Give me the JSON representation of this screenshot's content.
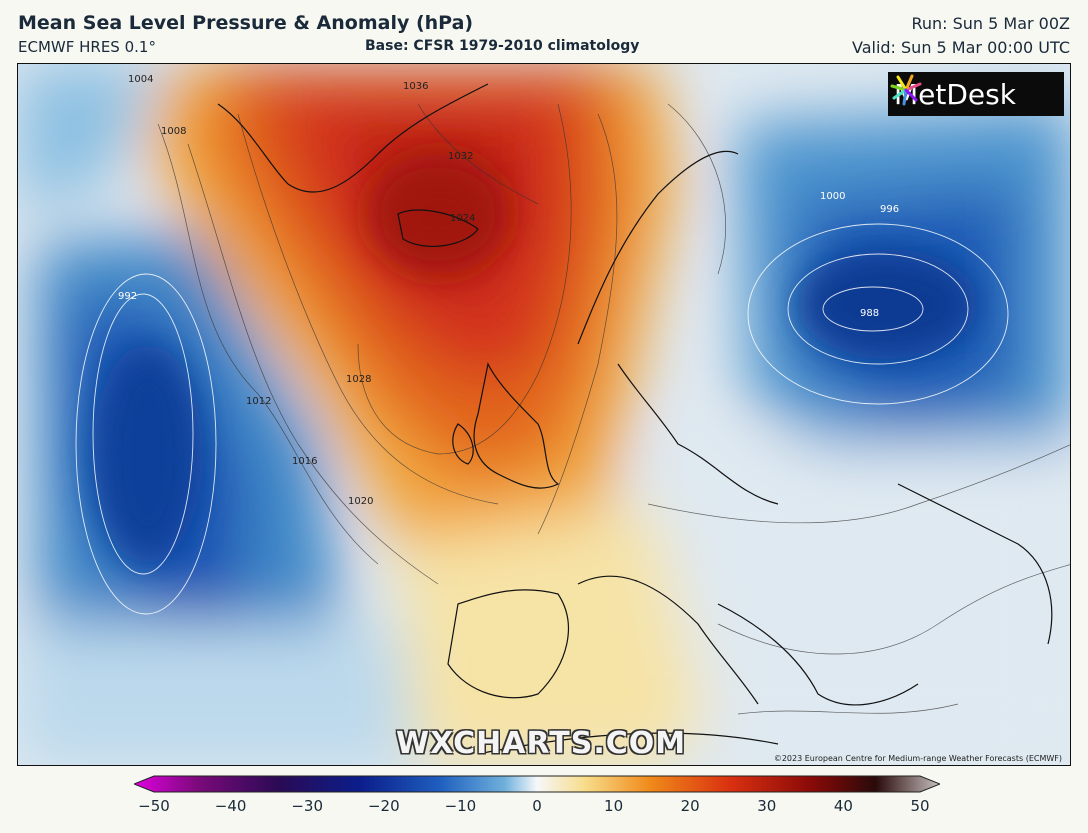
{
  "header": {
    "title": "Mean Sea Level Pressure & Anomaly (hPa)",
    "model": "ECMWF HRES 0.1°",
    "base": "Base: CFSR 1979-2010 climatology",
    "run": "Run: Sun 5 Mar 00Z",
    "valid": "Valid: Sun 5 Mar 00:00 UTC"
  },
  "logo": {
    "text": "MetDesk",
    "icon": "pinwheel-icon"
  },
  "watermark": "WXCHARTS.COM",
  "copyright": "©2023 European Centre for Medium-range Weather Forecasts (ECMWF)",
  "colorbar": {
    "min": -50,
    "max": 50,
    "ticks": [
      "−50",
      "−40",
      "−30",
      "−20",
      "−10",
      "0",
      "10",
      "20",
      "30",
      "40",
      "50"
    ],
    "colors": [
      "#e000e0",
      "#7a0a7a",
      "#2a0a55",
      "#0b1d8a",
      "#1f5fbf",
      "#6fb0dc",
      "#f6f8fa",
      "#f7dc8a",
      "#f08a1a",
      "#d93010",
      "#8a0a08",
      "#2a0a0a",
      "#c8c0c0"
    ]
  },
  "isobar_labels": [
    "1004",
    "1008",
    "1012",
    "1016",
    "1020",
    "1024",
    "1028",
    "1032",
    "1036",
    "1000",
    "996",
    "992",
    "988"
  ],
  "colors": {
    "high": "#d6361a",
    "low": "#0b3f9c",
    "neutral": "#f2f4f6"
  }
}
